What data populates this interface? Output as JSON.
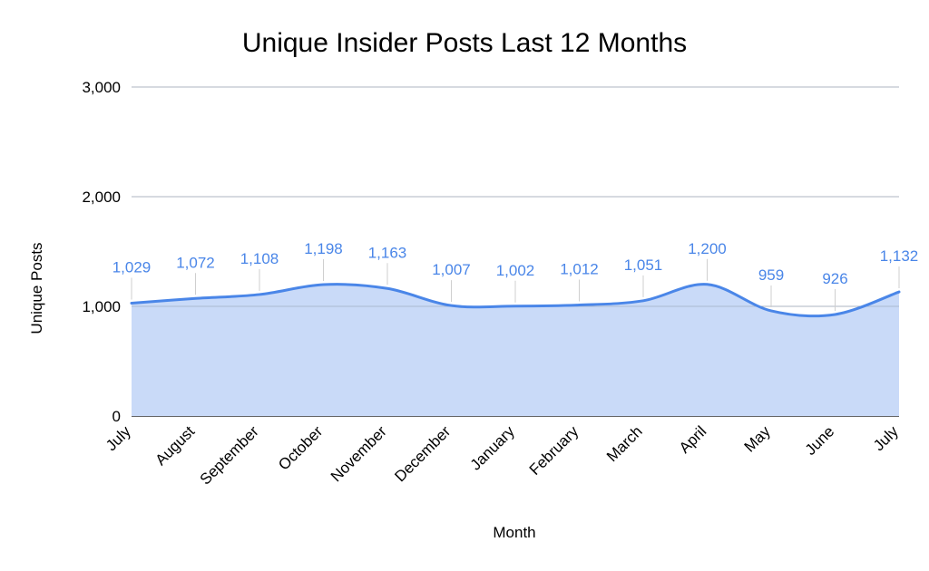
{
  "chart_data": {
    "type": "area",
    "title": "Unique Insider Posts Last 12 Months",
    "xlabel": "Month",
    "ylabel": "Unique Posts",
    "categories": [
      "July",
      "August",
      "September",
      "October",
      "November",
      "December",
      "January",
      "February",
      "March",
      "April",
      "May",
      "June",
      "July"
    ],
    "series": [
      {
        "values": [
          1029,
          1072,
          1108,
          1198,
          1163,
          1007,
          1002,
          1012,
          1051,
          1200,
          959,
          926,
          1132
        ],
        "data_labels": [
          "1,029",
          "1,072",
          "1,108",
          "1,198",
          "1,163",
          "1,007",
          "1,002",
          "1,012",
          "1,051",
          "1,200",
          "959",
          "926",
          "1,132"
        ]
      }
    ],
    "y_ticks": [
      0,
      1000,
      2000,
      3000
    ],
    "y_tick_labels": [
      "0",
      "1,000",
      "2,000",
      "3,000"
    ],
    "ylim": [
      0,
      3000
    ],
    "grid": true,
    "legend": "none",
    "colors": {
      "line": "#4a86e8",
      "fill": "#c9daf8",
      "data_label": "#4a86e8",
      "grid": "#cccccc",
      "baseline": "#333333"
    }
  }
}
